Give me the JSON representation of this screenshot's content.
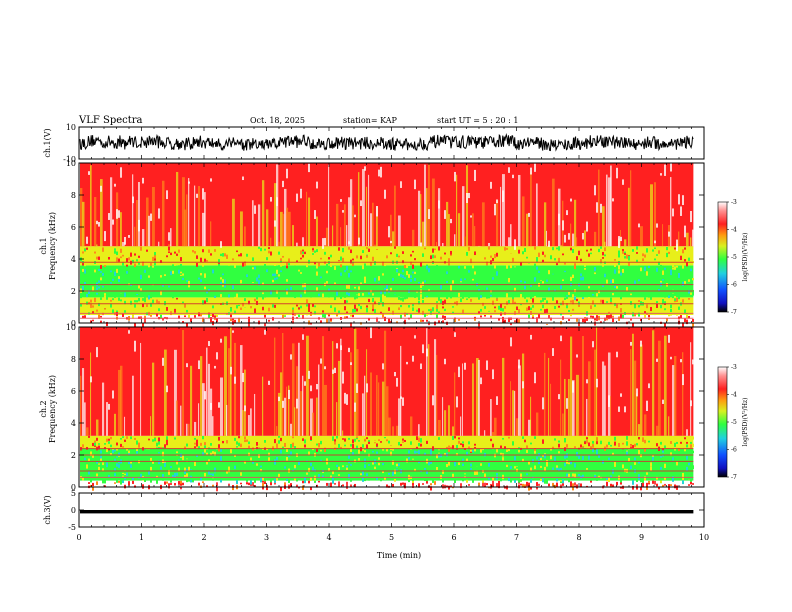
{
  "header": {
    "title": "VLF Spectra",
    "date": "Oct. 18, 2025",
    "station": "station= KAP",
    "start": "start  UT =  5 : 20 : 1"
  },
  "chart_data": [
    {
      "type": "line",
      "name": "ch1-waveform",
      "ylabel": "ch.1(V)",
      "ylim": [
        -10,
        10
      ],
      "yticks": [
        "10",
        "-10"
      ],
      "xlim": [
        0,
        10
      ],
      "note": "dense time-series waveform, approx. 9.8 min of data, amplitude mostly between -8 and +8 V"
    },
    {
      "type": "heatmap",
      "name": "ch1-spectrogram",
      "ylabel": "ch.1\nFrequency  (kHz)",
      "ylim": [
        0,
        10
      ],
      "yticks": [
        "0",
        "2",
        "4",
        "6",
        "8",
        "10"
      ],
      "xlim": [
        0,
        10
      ],
      "data_end_min": 9.83,
      "bands_khz": [
        [
          0.5,
          1.6,
          "yellow-green"
        ],
        [
          1.6,
          3.6,
          "green"
        ],
        [
          3.6,
          4.8,
          "yellow"
        ],
        [
          4.8,
          10,
          "red"
        ]
      ],
      "lines_khz": [
        0.3,
        0.6,
        1.2,
        2.0,
        2.4,
        3.8
      ]
    },
    {
      "type": "heatmap",
      "name": "ch2-spectrogram",
      "ylabel": "ch.2\nFrequency  (kHz)",
      "ylim": [
        0,
        10
      ],
      "yticks": [
        "0",
        "2",
        "4",
        "6",
        "8",
        "10"
      ],
      "xlim": [
        0,
        10
      ],
      "data_end_min": 9.83,
      "bands_khz": [
        [
          0.4,
          2.4,
          "green"
        ],
        [
          2.4,
          3.2,
          "yellow"
        ],
        [
          3.2,
          10,
          "red"
        ]
      ],
      "lines_khz": [
        0.6,
        1.0,
        1.6,
        2.0,
        2.4
      ]
    },
    {
      "type": "line",
      "name": "ch3-waveform",
      "ylabel": "ch.3(V)",
      "ylim": [
        -5,
        5
      ],
      "yticks": [
        "5",
        "0",
        "-5"
      ],
      "xlim": [
        0,
        10
      ],
      "note": "near-flat band around -0.5 V, thickness about 1 V"
    }
  ],
  "xaxis": {
    "label": "Time  (min)",
    "ticks": [
      "0",
      "1",
      "2",
      "3",
      "4",
      "5",
      "6",
      "7",
      "8",
      "9",
      "10"
    ]
  },
  "colorbar": {
    "label": "log(PSD)(V²/Hz)",
    "range": [
      -7,
      -3
    ],
    "ticks": [
      "-3",
      "-4",
      "-5",
      "-6",
      "-7"
    ]
  },
  "colors": {
    "ink": "#000000",
    "red": "#ff2020",
    "orange": "#ff8a1a",
    "yellow": "#e8ef1a",
    "green": "#30ff40",
    "cyan": "#21d6d6",
    "blue": "#1030e0",
    "white": "#ffffff"
  }
}
